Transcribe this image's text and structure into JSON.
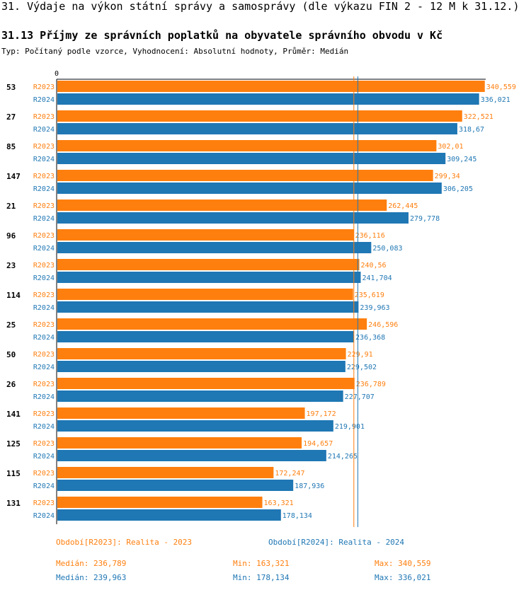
{
  "header": {
    "title": "31. Výdaje na výkon státní správy a samosprávy (dle výkazu FIN 2 - 12 M k 31.12.)",
    "subtitle": "31.13 Příjmy ze správních poplatků na obyvatele správního obvodu v Kč",
    "description": "Typ: Počítaný podle vzorce, Vyhodnocení: Absolutní hodnoty, Průměr: Medián"
  },
  "colors": {
    "r2023": "#ff7f0e",
    "r2024": "#1f77b4"
  },
  "chart_data": {
    "type": "bar",
    "orientation": "horizontal",
    "axis_zero_label": "0",
    "xlim": [
      0,
      350
    ],
    "categories": [
      "53",
      "27",
      "85",
      "147",
      "21",
      "96",
      "23",
      "114",
      "25",
      "50",
      "26",
      "141",
      "125",
      "115",
      "131"
    ],
    "series": [
      {
        "name": "R2023",
        "values": [
          340.559,
          322.521,
          302.01,
          299.34,
          262.445,
          236.116,
          240.56,
          235.619,
          246.596,
          229.91,
          236.789,
          197.172,
          194.657,
          172.247,
          163.321
        ],
        "labels": [
          "340,559",
          "322,521",
          "302,01",
          "299,34",
          "262,445",
          "236,116",
          "240,56",
          "235,619",
          "246,596",
          "229,91",
          "236,789",
          "197,172",
          "194,657",
          "172,247",
          "163,321"
        ]
      },
      {
        "name": "R2024",
        "values": [
          336.021,
          318.67,
          309.245,
          306.205,
          279.778,
          250.083,
          241.704,
          239.963,
          236.368,
          229.502,
          227.707,
          219.901,
          214.265,
          187.936,
          178.134
        ],
        "labels": [
          "336,021",
          "318,67",
          "309,245",
          "306,205",
          "279,778",
          "250,083",
          "241,704",
          "239,963",
          "236,368",
          "229,502",
          "227,707",
          "219,901",
          "214,265",
          "187,936",
          "178,134"
        ]
      }
    ],
    "medians": {
      "R2023": 236.789,
      "R2024": 239.963
    }
  },
  "legend": {
    "r2023": {
      "period": "Období[R2023]: Realita - 2023",
      "median": "Medián: 236,789",
      "min": "Min: 163,321",
      "max": "Max: 340,559"
    },
    "r2024": {
      "period": "Období[R2024]: Realita - 2024",
      "median": "Medián: 239,963",
      "min": "Min: 178,134",
      "max": "Max: 336,021"
    }
  }
}
